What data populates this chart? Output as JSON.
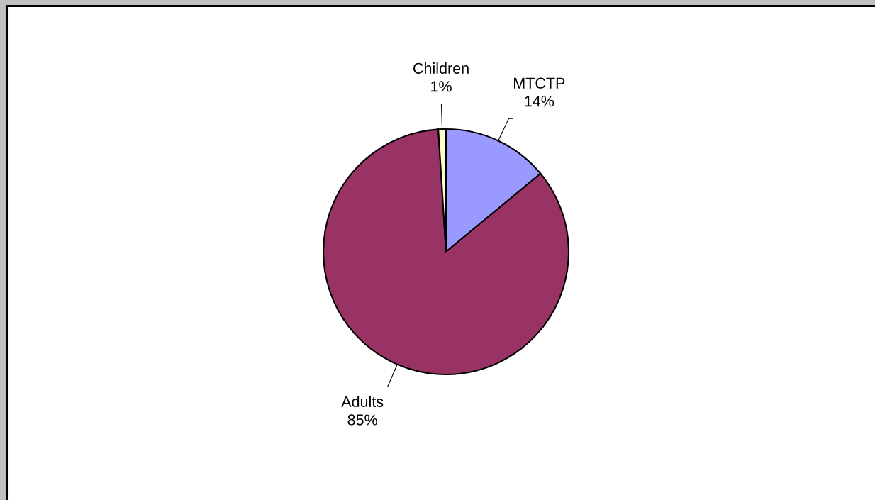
{
  "chart_data": {
    "type": "pie",
    "categories": [
      "MTCTP",
      "Adults",
      "Children"
    ],
    "values": [
      14,
      85,
      1
    ],
    "colors": [
      "#9999ff",
      "#993366",
      "#ffffcc"
    ],
    "value_labels": [
      "14%",
      "85%",
      "1%"
    ]
  }
}
